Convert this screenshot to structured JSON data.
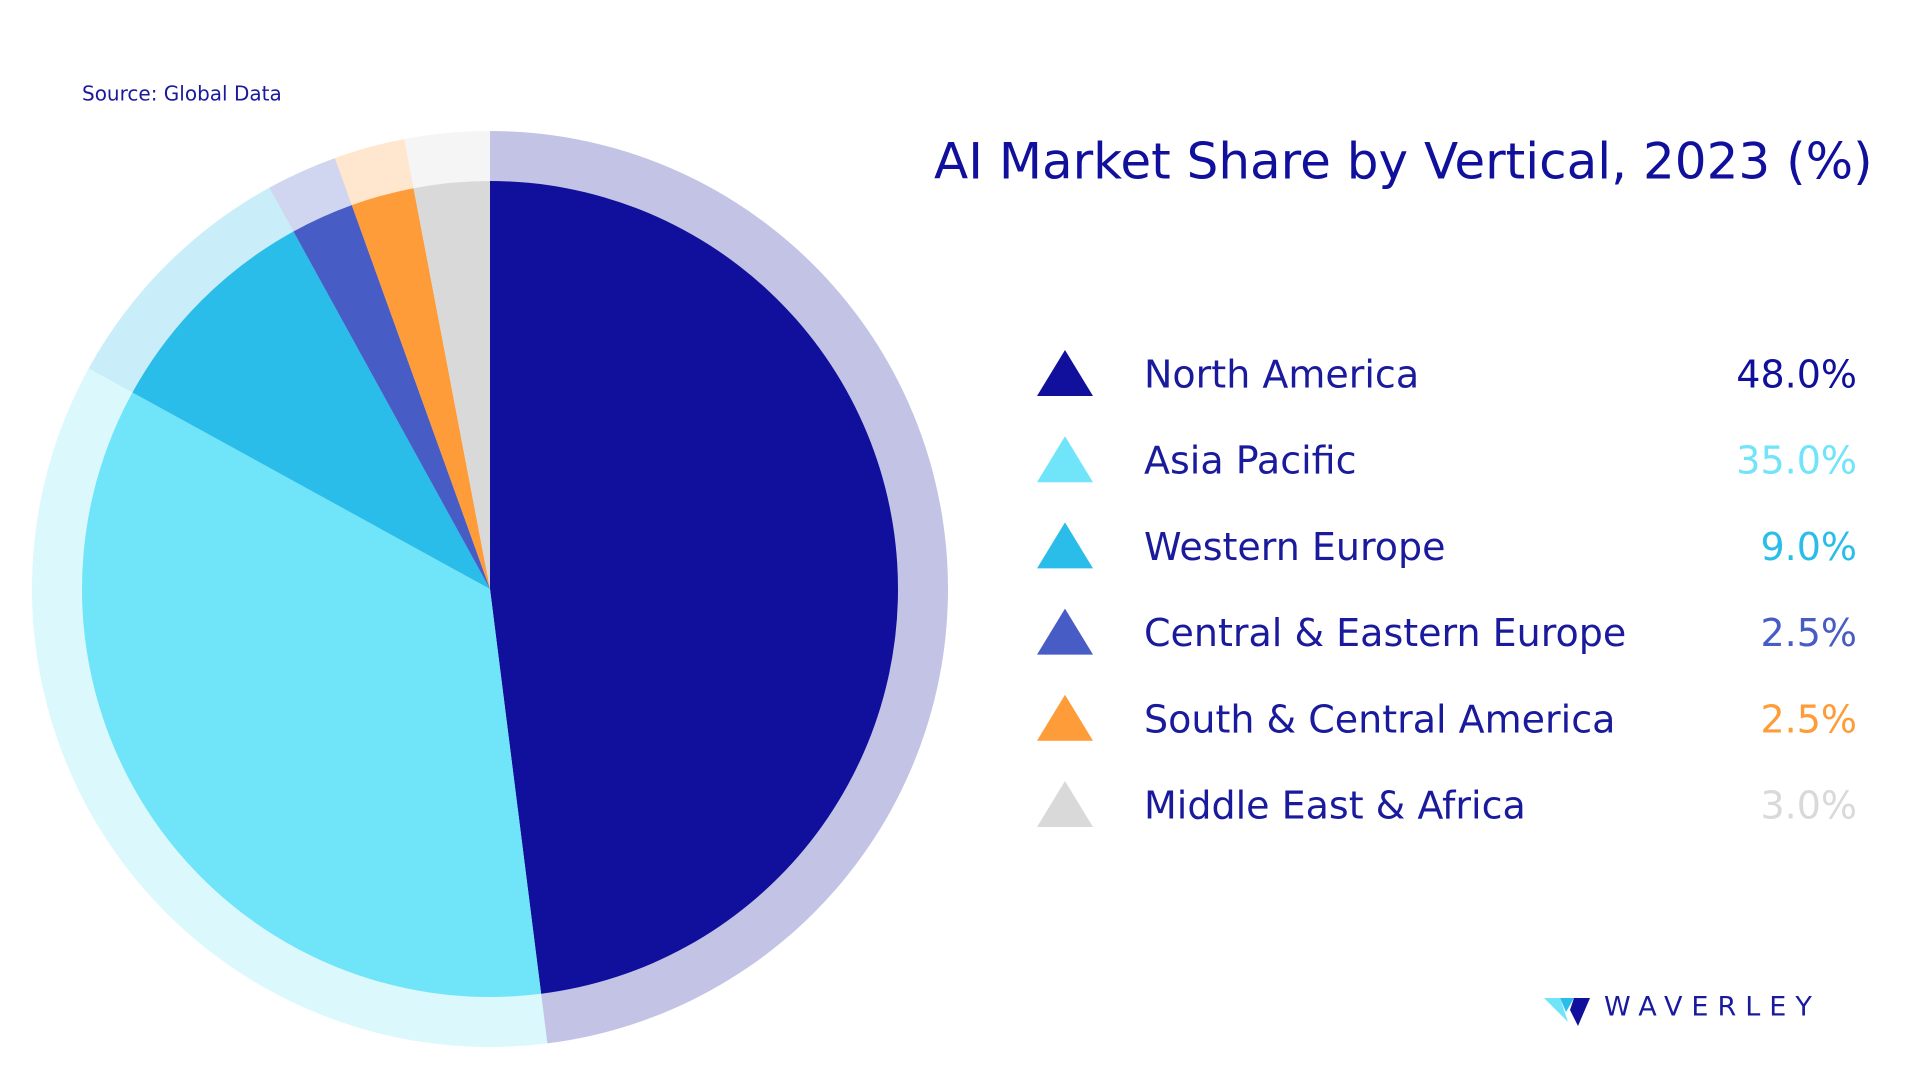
{
  "chart_data": {
    "type": "pie",
    "title": "AI Market Share by Vertical, 2023 (%)",
    "source": "Source: Global Data",
    "categories": [
      "North America",
      "Asia Pacific",
      "Western Europe",
      "Central & Eastern Europe",
      "South & Central America",
      "Middle East & Africa"
    ],
    "values": [
      48.0,
      35.0,
      9.0,
      2.5,
      2.5,
      3.0
    ],
    "value_labels": [
      "48.0%",
      "35.0%",
      "9.0%",
      "2.5%",
      "2.5%",
      "3.0%"
    ],
    "colors": [
      "#10109c",
      "#70e4f8",
      "#2bbde9",
      "#475cc5",
      "#ff9c3a",
      "#d9d9d9"
    ]
  },
  "logo": "WAVERLEY"
}
